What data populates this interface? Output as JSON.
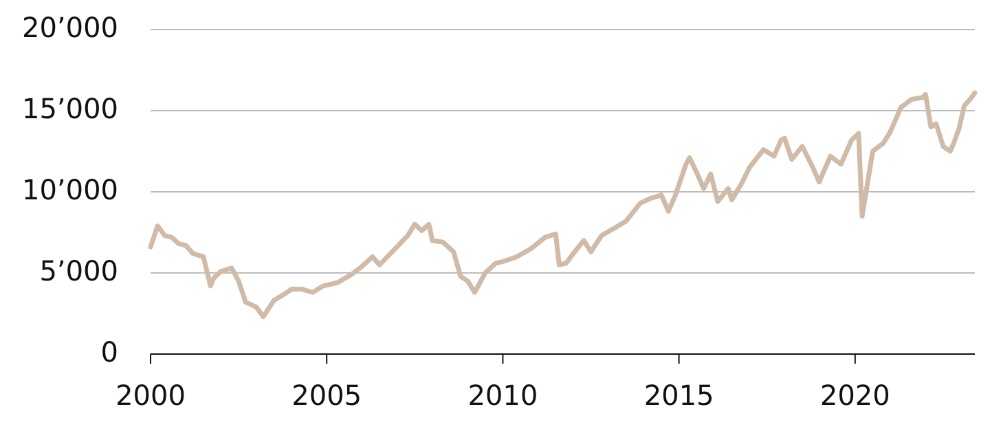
{
  "chart_data": {
    "type": "line",
    "x": [
      2000.0,
      2000.2,
      2000.4,
      2000.6,
      2000.8,
      2001.0,
      2001.2,
      2001.5,
      2001.7,
      2001.8,
      2002.0,
      2002.3,
      2002.5,
      2002.7,
      2002.9,
      2003.0,
      2003.2,
      2003.5,
      2003.8,
      2004.0,
      2004.3,
      2004.6,
      2004.9,
      2005.3,
      2005.7,
      2006.0,
      2006.3,
      2006.5,
      2006.9,
      2007.3,
      2007.5,
      2007.7,
      2007.9,
      2008.0,
      2008.3,
      2008.6,
      2008.8,
      2009.0,
      2009.2,
      2009.5,
      2009.8,
      2010.0,
      2010.4,
      2010.8,
      2011.2,
      2011.5,
      2011.6,
      2011.8,
      2012.0,
      2012.3,
      2012.5,
      2012.8,
      2013.2,
      2013.5,
      2013.9,
      2014.2,
      2014.5,
      2014.7,
      2014.9,
      2015.2,
      2015.3,
      2015.5,
      2015.7,
      2015.9,
      2016.1,
      2016.4,
      2016.5,
      2016.8,
      2017.0,
      2017.4,
      2017.7,
      2017.9,
      2018.0,
      2018.2,
      2018.5,
      2018.8,
      2018.98,
      2019.3,
      2019.6,
      2019.9,
      2020.1,
      2020.2,
      2020.35,
      2020.5,
      2020.8,
      2021.0,
      2021.3,
      2021.6,
      2021.9,
      2022.0,
      2022.15,
      2022.3,
      2022.5,
      2022.7,
      2022.8,
      2022.95,
      2023.1,
      2023.3,
      2023.4
    ],
    "series": [
      {
        "color": "#cfbba7",
        "values": [
          6600,
          7900,
          7300,
          7200,
          6800,
          6700,
          6200,
          6000,
          4200,
          4700,
          5100,
          5300,
          4500,
          3200,
          3000,
          2900,
          2300,
          3300,
          3700,
          4000,
          4000,
          3800,
          4200,
          4400,
          4900,
          5400,
          6000,
          5500,
          6400,
          7300,
          8000,
          7600,
          8000,
          7000,
          6900,
          6300,
          4800,
          4500,
          3800,
          5000,
          5600,
          5700,
          6000,
          6500,
          7200,
          7400,
          5500,
          5600,
          6200,
          7000,
          6300,
          7300,
          7800,
          8200,
          9300,
          9600,
          9800,
          8800,
          9800,
          11700,
          12100,
          11200,
          10200,
          11100,
          9400,
          10200,
          9500,
          10600,
          11500,
          12600,
          12200,
          13200,
          13300,
          12000,
          12800,
          11500,
          10600,
          12200,
          11700,
          13200,
          13600,
          8500,
          10500,
          12500,
          13000,
          13700,
          15200,
          15700,
          15800,
          16000,
          14000,
          14200,
          12800,
          12500,
          13000,
          13900,
          15300,
          15800,
          16100
        ]
      }
    ],
    "xlim": [
      2000,
      2023.4
    ],
    "xticks": [
      2000,
      2005,
      2010,
      2015,
      2020
    ],
    "ylim": [
      0,
      20000
    ],
    "yticks": [
      0,
      {
        "value": 5000,
        "label": "5’000"
      },
      {
        "value": 10000,
        "label": "10’000"
      },
      {
        "value": 15000,
        "label": "15’000"
      },
      {
        "value": 20000,
        "label": "20’000"
      }
    ],
    "grid": true
  }
}
